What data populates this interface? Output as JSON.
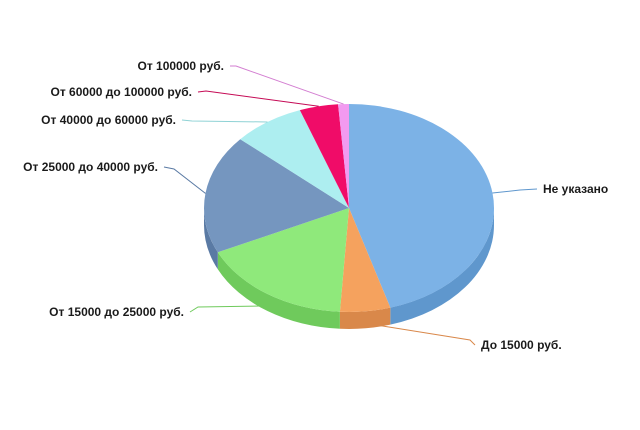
{
  "chart_data": {
    "type": "pie",
    "title": "",
    "legend": "none",
    "slices": [
      {
        "label": "Не указано",
        "value": 45.4,
        "color": "#7cb2e6",
        "side": "#5f97cd"
      },
      {
        "label": "До 15000 руб.",
        "value": 5.6,
        "color": "#f5a25e",
        "side": "#d9884a"
      },
      {
        "label": "От 15000 до 25000 руб.",
        "value": 17.0,
        "color": "#8fe97b",
        "side": "#6fca5c"
      },
      {
        "label": "От 25000 до 40000 руб.",
        "value": 18.5,
        "color": "#7596bf",
        "side": "#5a7aa4"
      },
      {
        "label": "От 40000 до 60000 руб.",
        "value": 8.0,
        "color": "#adeef0",
        "side": "#8fd2d5"
      },
      {
        "label": "От 60000 до 100000 руб.",
        "value": 4.3,
        "color": "#f00c68",
        "side": "#c50a55"
      },
      {
        "label": "От 100000 руб.",
        "value": 1.2,
        "color": "#f29af0",
        "side": "#d37ed1"
      }
    ]
  }
}
